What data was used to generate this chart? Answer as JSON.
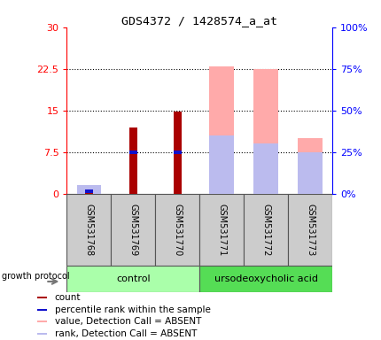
{
  "title": "GDS4372 / 1428574_a_at",
  "samples": [
    "GSM531768",
    "GSM531769",
    "GSM531770",
    "GSM531771",
    "GSM531772",
    "GSM531773"
  ],
  "count_values": [
    0.3,
    12.0,
    14.8,
    null,
    null,
    null
  ],
  "percentile_rank_values": [
    0.5,
    7.5,
    7.5,
    null,
    null,
    null
  ],
  "absent_value_values": [
    null,
    null,
    null,
    23.0,
    22.5,
    10.0
  ],
  "absent_rank_values": [
    null,
    null,
    null,
    10.5,
    9.0,
    7.5
  ],
  "gsm531768_absent_value": 1.2,
  "gsm531768_absent_rank": 1.5,
  "ylim_left": [
    0,
    30
  ],
  "ylim_right": [
    0,
    100
  ],
  "yticks_left": [
    0,
    7.5,
    15,
    22.5,
    30
  ],
  "yticks_right": [
    0,
    25,
    50,
    75,
    100
  ],
  "ytick_labels_left": [
    "0",
    "7.5",
    "15",
    "22.5",
    "30"
  ],
  "ytick_labels_right": [
    "0%",
    "25%",
    "50%",
    "75%",
    "100%"
  ],
  "color_count": "#aa0000",
  "color_percentile": "#1111cc",
  "color_absent_value": "#ffaaaa",
  "color_absent_rank": "#bbbbee",
  "color_control_bg": "#aaffaa",
  "color_udca_bg": "#55dd55",
  "color_sample_bg": "#cccccc",
  "group_control_label": "control",
  "group_udca_label": "ursodeoxycholic acid",
  "growth_protocol_label": "growth protocol",
  "legend_items": [
    "count",
    "percentile rank within the sample",
    "value, Detection Call = ABSENT",
    "rank, Detection Call = ABSENT"
  ],
  "legend_colors": [
    "#aa0000",
    "#1111cc",
    "#ffaaaa",
    "#bbbbee"
  ]
}
